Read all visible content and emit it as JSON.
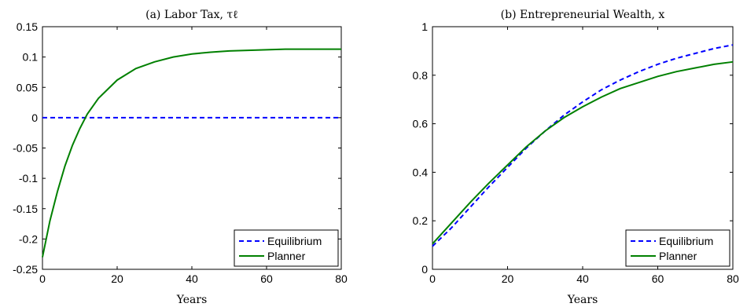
{
  "chart_data": [
    {
      "type": "line",
      "title": "(a) Labor Tax, τℓ",
      "xlabel": "Years",
      "ylabel": "",
      "xlim": [
        0,
        80
      ],
      "ylim": [
        -0.25,
        0.15
      ],
      "xticks": [
        0,
        20,
        40,
        60,
        80
      ],
      "yticks": [
        -0.25,
        -0.2,
        -0.15,
        -0.1,
        -0.05,
        0,
        0.05,
        0.1,
        0.15
      ],
      "ytick_labels": [
        "-0.25",
        "-0.2",
        "-0.15",
        "-0.1",
        "-0.05",
        "0",
        "0.05",
        "0.1",
        "0.15"
      ],
      "xtick_labels": [
        "0",
        "20",
        "40",
        "60",
        "80"
      ],
      "grid": false,
      "legend_position": "bottom-right",
      "series": [
        {
          "name": "Equilibrium",
          "color": "#0000ff",
          "style": "dashed",
          "x": [
            0,
            10,
            20,
            30,
            40,
            50,
            60,
            70,
            80
          ],
          "y": [
            0,
            0,
            0,
            0,
            0,
            0,
            0,
            0,
            0
          ]
        },
        {
          "name": "Planner",
          "color": "#008000",
          "style": "solid",
          "x": [
            0,
            2,
            4,
            6,
            8,
            10,
            12,
            15,
            20,
            25,
            30,
            35,
            40,
            45,
            50,
            55,
            60,
            65,
            70,
            75,
            80
          ],
          "y": [
            -0.23,
            -0.17,
            -0.122,
            -0.08,
            -0.046,
            -0.018,
            0.006,
            0.032,
            0.062,
            0.081,
            0.092,
            0.1,
            0.105,
            0.108,
            0.11,
            0.111,
            0.112,
            0.113,
            0.113,
            0.113,
            0.113
          ]
        }
      ]
    },
    {
      "type": "line",
      "title": "(b) Entrepreneurial Wealth, x",
      "xlabel": "Years",
      "ylabel": "",
      "xlim": [
        0,
        80
      ],
      "ylim": [
        0,
        1
      ],
      "xticks": [
        0,
        20,
        40,
        60,
        80
      ],
      "yticks": [
        0,
        0.2,
        0.4,
        0.6,
        0.8,
        1
      ],
      "ytick_labels": [
        "0",
        "0.2",
        "0.4",
        "0.6",
        "0.8",
        "1"
      ],
      "xtick_labels": [
        "0",
        "20",
        "40",
        "60",
        "80"
      ],
      "grid": false,
      "legend_position": "bottom-right",
      "series": [
        {
          "name": "Equilibrium",
          "color": "#0000ff",
          "style": "dashed",
          "x": [
            0,
            5,
            10,
            15,
            20,
            25,
            30,
            35,
            40,
            45,
            50,
            55,
            60,
            65,
            70,
            75,
            80
          ],
          "y": [
            0.095,
            0.17,
            0.255,
            0.34,
            0.42,
            0.5,
            0.57,
            0.635,
            0.69,
            0.74,
            0.78,
            0.815,
            0.845,
            0.87,
            0.89,
            0.91,
            0.925
          ]
        },
        {
          "name": "Planner",
          "color": "#008000",
          "style": "solid",
          "x": [
            0,
            5,
            10,
            15,
            20,
            25,
            30,
            35,
            40,
            45,
            50,
            55,
            60,
            65,
            70,
            75,
            80
          ],
          "y": [
            0.105,
            0.19,
            0.275,
            0.355,
            0.43,
            0.505,
            0.57,
            0.625,
            0.67,
            0.71,
            0.745,
            0.77,
            0.795,
            0.815,
            0.83,
            0.845,
            0.855
          ]
        }
      ]
    }
  ]
}
